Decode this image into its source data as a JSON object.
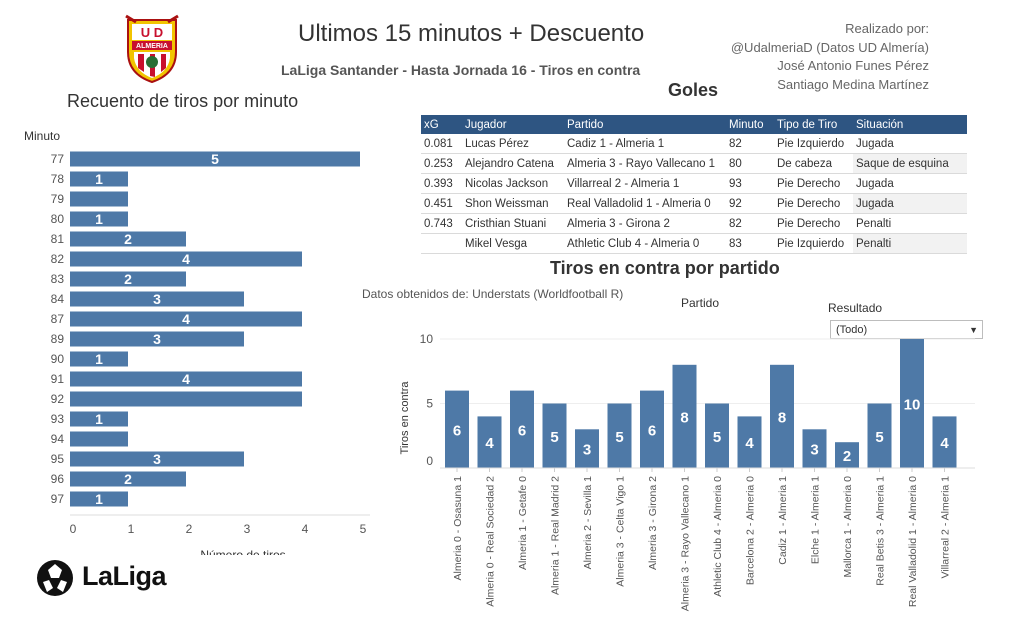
{
  "header": {
    "title": "Ultimos 15 minutos + Descuento",
    "subtitle": "LaLiga Santander - Hasta Jornada 16 - Tiros en contra",
    "credits": [
      "Realizado por:",
      "@UdalmeriaD (Datos UD Almería)",
      "José Antonio Funes Pérez",
      "Santiago Medina Martínez"
    ],
    "crest_text": "ALMERIA",
    "crest_letters": "U D"
  },
  "goals": {
    "title": "Goles",
    "columns": [
      "xG",
      "Jugador",
      "Partido",
      "Minuto",
      "Tipo de Tiro",
      "Situación"
    ],
    "rows": [
      [
        "0.081",
        "Lucas Pérez",
        "Cadiz 1 - Almeria 1",
        "82",
        "Pie Izquierdo",
        "Jugada"
      ],
      [
        "0.253",
        "Alejandro Catena",
        "Almeria 3 - Rayo Vallecano 1",
        "80",
        "De cabeza",
        "Saque de esquina"
      ],
      [
        "0.393",
        "Nicolas Jackson",
        "Villarreal 2 - Almeria 1",
        "93",
        "Pie Derecho",
        "Jugada"
      ],
      [
        "0.451",
        "Shon Weissman",
        "Real Valladolid 1 - Almeria 0",
        "92",
        "Pie Derecho",
        "Jugada"
      ],
      [
        "0.743",
        "Cristhian Stuani",
        "Almeria 3 - Girona 2",
        "82",
        "Pie Derecho",
        "Penalti"
      ],
      [
        "",
        "Mikel Vesga",
        "Athletic Club 4 - Almeria 0",
        "83",
        "Pie Izquierdo",
        "Penalti"
      ]
    ]
  },
  "source_note": "Datos obtenidos de: Understats (Worldfootball R)",
  "filter": {
    "label": "Resultado",
    "selected": "(Todo)"
  },
  "branding": {
    "logo_text": "LaLiga"
  },
  "colors": {
    "bar": "#4e79a7",
    "table_header": "#2e5582"
  },
  "chart_data": [
    {
      "type": "bar",
      "orientation": "horizontal",
      "title": "Recuento de tiros por minuto",
      "ylabel": "Minuto",
      "xlabel": "Número de tiros",
      "categories": [
        "77",
        "78",
        "79",
        "80",
        "81",
        "82",
        "83",
        "84",
        "87",
        "89",
        "90",
        "91",
        "92",
        "93",
        "94",
        "95",
        "96",
        "97"
      ],
      "values": [
        5,
        1,
        1,
        1,
        2,
        4,
        2,
        3,
        4,
        3,
        1,
        4,
        4,
        1,
        1,
        3,
        2,
        1
      ],
      "data_labels": [
        "5",
        "1",
        "",
        "1",
        "2",
        "4",
        "2",
        "3",
        "4",
        "3",
        "1",
        "4",
        "",
        "1",
        "",
        "3",
        "2",
        "1"
      ],
      "xlim": [
        0,
        5
      ],
      "xticks": [
        0,
        1,
        2,
        3,
        4,
        5
      ]
    },
    {
      "type": "bar",
      "orientation": "vertical",
      "title": "Tiros en contra por partido",
      "xlabel": "Partido",
      "ylabel": "Tiros en contra",
      "categories": [
        "Almeria 0 - Osasuna 1",
        "Almeria 0 - Real Sociedad 2",
        "Almeria 1 - Getafe 0",
        "Almeria 1 - Real Madrid 2",
        "Almeria 2 - Sevilla 1",
        "Almeria 3 - Celta Vigo 1",
        "Almeria 3 - Girona 2",
        "Almeria 3 - Rayo Vallecano 1",
        "Athletic Club 4 - Almeria 0",
        "Barcelona 2 - Almeria 0",
        "Cadiz 1 - Almeria 1",
        "Elche 1 - Almeria 1",
        "Mallorca 1 - Almeria 0",
        "Real Betis 3 - Almeria 1",
        "Real Valladolid 1 - Almeria 0",
        "Villarreal 2 - Almeria 1"
      ],
      "values": [
        6,
        4,
        6,
        5,
        3,
        5,
        6,
        8,
        5,
        4,
        8,
        3,
        2,
        5,
        10,
        4
      ],
      "ylim": [
        0,
        10
      ],
      "yticks": [
        0,
        5,
        10
      ]
    }
  ]
}
